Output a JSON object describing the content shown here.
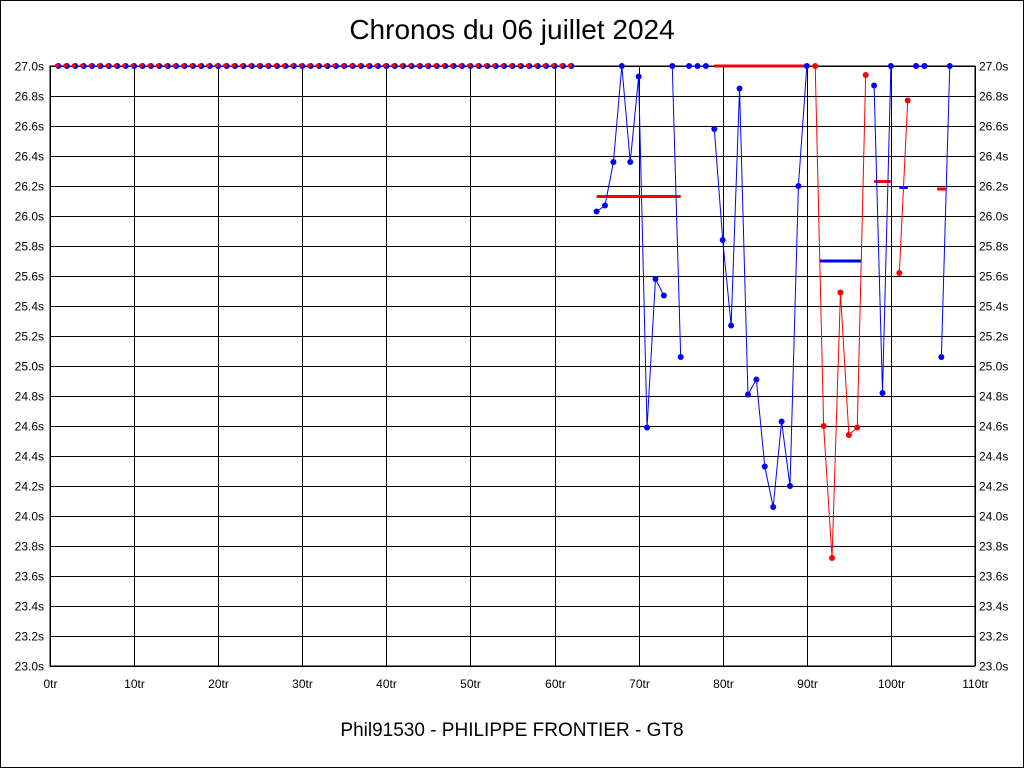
{
  "chart_data": {
    "type": "line",
    "title": "Chronos du 06 juillet 2024",
    "subtitle": "Phil91530 - PHILIPPE FRONTIER - GT8",
    "xlabel": "",
    "ylabel": "",
    "xlim": [
      0,
      110
    ],
    "ylim": [
      23.0,
      27.0
    ],
    "grid": true,
    "legend": "none",
    "x_ticks": [
      "0tr",
      "10tr",
      "20tr",
      "30tr",
      "40tr",
      "50tr",
      "60tr",
      "70tr",
      "80tr",
      "90tr",
      "100tr",
      "110tr"
    ],
    "y_ticks": [
      "23.0s",
      "23.2s",
      "23.4s",
      "23.6s",
      "23.8s",
      "24.0s",
      "24.2s",
      "24.4s",
      "24.6s",
      "24.8s",
      "25.0s",
      "25.2s",
      "25.4s",
      "25.6s",
      "25.8s",
      "26.0s",
      "26.2s",
      "26.4s",
      "26.6s",
      "26.8s",
      "27.0s"
    ],
    "colors": {
      "blue": "#0000ff",
      "red": "#ff0000",
      "grid": "#000000"
    },
    "capped_rows": [
      {
        "from": 1,
        "to": 62,
        "value": 27.0
      }
    ],
    "series": [
      {
        "color": "blue",
        "points": [
          [
            65,
            26.03
          ],
          [
            66,
            26.07
          ],
          [
            67,
            26.36
          ],
          [
            68,
            27.0
          ],
          [
            69,
            26.36
          ],
          [
            70,
            26.93
          ],
          [
            71,
            24.59
          ],
          [
            72,
            25.58
          ],
          [
            73,
            25.47
          ]
        ]
      },
      {
        "color": "blue",
        "points": [
          [
            74,
            27.0
          ],
          [
            75,
            25.06
          ]
        ]
      },
      {
        "color": "blue",
        "points": [
          [
            76,
            27.0
          ],
          [
            77,
            27.0
          ],
          [
            78,
            27.0
          ]
        ]
      },
      {
        "color": "blue",
        "points": [
          [
            79,
            26.58
          ],
          [
            80,
            25.84
          ],
          [
            81,
            25.27
          ],
          [
            82,
            26.85
          ],
          [
            83,
            24.81
          ],
          [
            84,
            24.91
          ],
          [
            85,
            24.33
          ],
          [
            86,
            24.06
          ],
          [
            87,
            24.63
          ],
          [
            88,
            24.2
          ],
          [
            89,
            26.2
          ],
          [
            90,
            27.0
          ]
        ]
      },
      {
        "color": "red",
        "points": [
          [
            91,
            27.0
          ],
          [
            92,
            24.6
          ],
          [
            93,
            23.72
          ],
          [
            94,
            25.49
          ],
          [
            95,
            24.54
          ],
          [
            96,
            24.59
          ],
          [
            97,
            26.94
          ]
        ]
      },
      {
        "color": "blue",
        "points": [
          [
            98,
            26.87
          ],
          [
            99,
            24.82
          ],
          [
            100,
            27.0
          ]
        ]
      },
      {
        "color": "red",
        "points": [
          [
            101,
            25.62
          ],
          [
            102,
            26.77
          ]
        ]
      },
      {
        "color": "red",
        "points": [
          [
            103,
            27.0
          ],
          [
            104,
            27.0
          ]
        ]
      },
      {
        "color": "blue",
        "points": [
          [
            103,
            27.0
          ],
          [
            104,
            27.0
          ]
        ]
      },
      {
        "color": "blue",
        "points": [
          [
            106,
            25.06
          ],
          [
            107,
            27.0
          ]
        ]
      }
    ],
    "averages": [
      {
        "color": "red",
        "from": 65,
        "to": 75,
        "value": 26.13
      },
      {
        "color": "red",
        "from": 79,
        "to": 90,
        "value": 27.0
      },
      {
        "color": "blue",
        "from": 91.5,
        "to": 96.5,
        "value": 25.7
      },
      {
        "color": "red",
        "from": 98,
        "to": 100,
        "value": 26.23
      },
      {
        "color": "blue",
        "from": 101,
        "to": 102,
        "value": 26.19
      },
      {
        "color": "red",
        "from": 105.5,
        "to": 106.5,
        "value": 26.18
      }
    ]
  }
}
